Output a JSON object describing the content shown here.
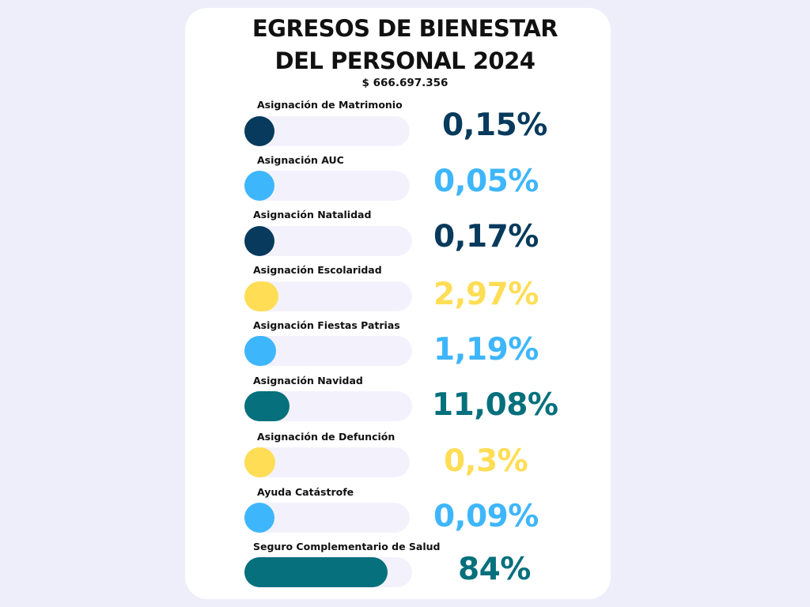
{
  "title_line1": "EGRESOS DE BIENESTAR",
  "title_line2": "DEL PERSONAL 2024",
  "total": "$ 666.697.356",
  "colors": {
    "dark_navy": "#073a5c",
    "sky_blue": "#3eb6fb",
    "yellow": "#ffdd55",
    "teal": "#06707d",
    "track": "#f3f2fc",
    "background": "#eeeefb",
    "card": "#ffffff"
  },
  "chart_data": {
    "type": "bar",
    "categories": [
      "Asignación de Matrimonio",
      "Asignación AUC",
      "Asignación Natalidad",
      "Asignación Escolaridad",
      "Asignación Fiestas Patrias",
      "Asignación Navidad",
      "Asignación de Defunción",
      "Ayuda Catástrofe",
      "Seguro Complementario de Salud"
    ],
    "values": [
      0.15,
      0.05,
      0.17,
      2.97,
      1.19,
      11.08,
      0.3,
      0.09,
      84
    ],
    "value_labels": [
      "0,15%",
      "0,05%",
      "0,17%",
      "2,97%",
      "1,19%",
      "11,08%",
      "0,3%",
      "0,09%",
      "84%"
    ],
    "bar_colors": [
      "#073a5c",
      "#3eb6fb",
      "#073a5c",
      "#ffdd55",
      "#3eb6fb",
      "#06707d",
      "#ffdd55",
      "#3eb6fb",
      "#06707d"
    ],
    "title": "EGRESOS DE BIENESTAR DEL PERSONAL 2024",
    "unit": "%",
    "orientation": "horizontal"
  }
}
